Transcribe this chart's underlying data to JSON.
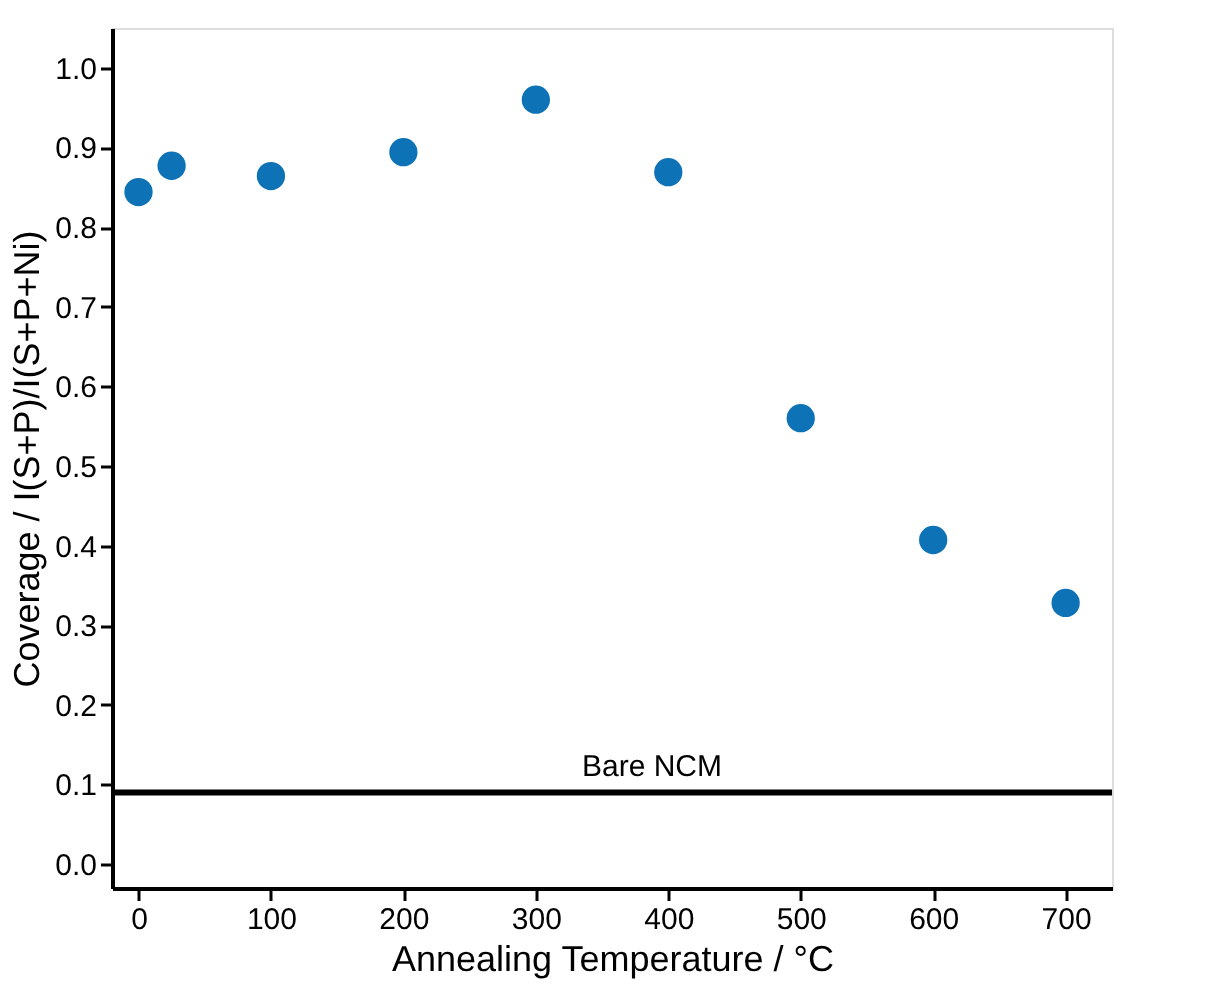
{
  "chart_data": {
    "type": "scatter",
    "xlabel": "Annealing Temperature / °C",
    "ylabel": "Coverage / I(S+P)/I(S+P+Ni)",
    "x": [
      0,
      25,
      100,
      200,
      300,
      400,
      500,
      600,
      700
    ],
    "series": [
      {
        "color": "#0d72b6",
        "values": [
          0.844,
          0.877,
          0.864,
          0.894,
          0.96,
          0.869,
          0.56,
          0.407,
          0.328
        ]
      }
    ],
    "xlim": [
      -20,
      735
    ],
    "xticks": [
      0,
      100,
      200,
      300,
      400,
      500,
      600,
      700
    ],
    "ylim": [
      -0.03,
      1.05
    ],
    "yticks": [
      {
        "value": 0,
        "label": "0.0"
      },
      0.1,
      0.2,
      0.3,
      0.4,
      0.5,
      0.6,
      0.7,
      0.8,
      0.9,
      {
        "value": 1,
        "label": "1.0"
      }
    ],
    "ref_lines": [
      {
        "axis": "y",
        "value": 0.09,
        "label": "Bare NCM",
        "color": "#000000",
        "line_style": "solid"
      }
    ],
    "marker": "circle",
    "grid": false,
    "legend": false
  }
}
